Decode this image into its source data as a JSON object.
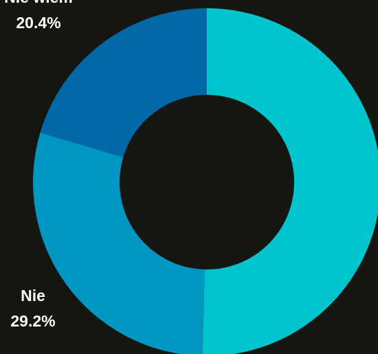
{
  "chart_data": {
    "type": "donut",
    "categories": [
      null,
      "Nie",
      "Nie wiem"
    ],
    "values": [
      50.4,
      29.2,
      20.4
    ],
    "value_labels": [
      null,
      "29.2%",
      "20.4%"
    ],
    "colors": [
      "#00c4cc",
      "#0096c2",
      "#0068a6"
    ]
  }
}
